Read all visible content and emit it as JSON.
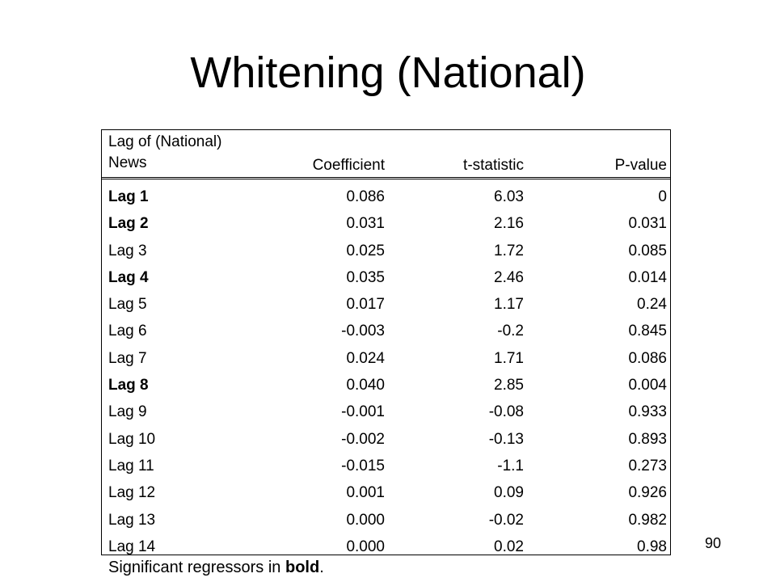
{
  "title": "Whitening (National)",
  "table": {
    "header": {
      "lag_line1": "Lag of (National)",
      "lag_line2": "News",
      "coefficient": "Coefficient",
      "t_statistic": "t-statistic",
      "p_value": "P-value"
    },
    "rows": [
      {
        "lag": "Lag 1",
        "coefficient": "0.086",
        "t": "6.03",
        "p": "0",
        "bold": true
      },
      {
        "lag": "Lag 2",
        "coefficient": "0.031",
        "t": "2.16",
        "p": "0.031",
        "bold": true
      },
      {
        "lag": "Lag 3",
        "coefficient": "0.025",
        "t": "1.72",
        "p": "0.085",
        "bold": false
      },
      {
        "lag": "Lag 4",
        "coefficient": "0.035",
        "t": "2.46",
        "p": "0.014",
        "bold": true
      },
      {
        "lag": "Lag 5",
        "coefficient": "0.017",
        "t": "1.17",
        "p": "0.24",
        "bold": false
      },
      {
        "lag": "Lag 6",
        "coefficient": "-0.003",
        "t": "-0.2",
        "p": "0.845",
        "bold": false
      },
      {
        "lag": "Lag 7",
        "coefficient": "0.024",
        "t": "1.71",
        "p": "0.086",
        "bold": false
      },
      {
        "lag": "Lag 8",
        "coefficient": "0.040",
        "t": "2.85",
        "p": "0.004",
        "bold": true
      },
      {
        "lag": "Lag 9",
        "coefficient": "-0.001",
        "t": "-0.08",
        "p": "0.933",
        "bold": false
      },
      {
        "lag": "Lag 10",
        "coefficient": "-0.002",
        "t": "-0.13",
        "p": "0.893",
        "bold": false
      },
      {
        "lag": "Lag 11",
        "coefficient": "-0.015",
        "t": "-1.1",
        "p": "0.273",
        "bold": false
      },
      {
        "lag": "Lag 12",
        "coefficient": "0.001",
        "t": "0.09",
        "p": "0.926",
        "bold": false
      },
      {
        "lag": "Lag 13",
        "coefficient": "0.000",
        "t": "-0.02",
        "p": "0.982",
        "bold": false
      },
      {
        "lag": "Lag 14",
        "coefficient": "0.000",
        "t": "0.02",
        "p": "0.98",
        "bold": false
      }
    ]
  },
  "footnote": {
    "prefix": "Significant regressors in ",
    "bold_word": "bold",
    "suffix": "."
  },
  "page_number": "90"
}
